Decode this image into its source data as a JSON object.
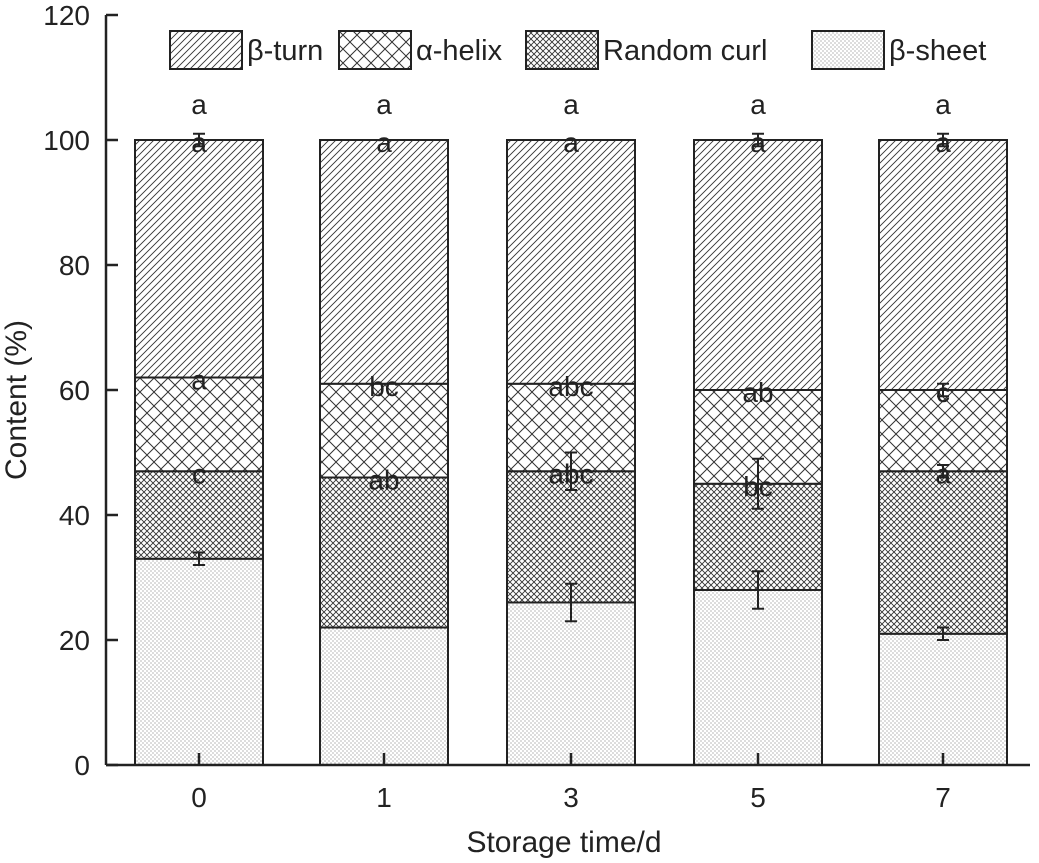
{
  "chart_data": {
    "type": "bar",
    "stacked": true,
    "xlabel": "Storage time/d",
    "ylabel": "Content (%)",
    "ylim": [
      0,
      120
    ],
    "yticks": [
      "0",
      "20",
      "40",
      "60",
      "80",
      "100",
      "120"
    ],
    "categories": [
      "0",
      "1",
      "3",
      "5",
      "7"
    ],
    "legend_position": "top",
    "grid": false,
    "series": [
      {
        "name": "β-sheet",
        "pattern": "dots",
        "values": [
          33,
          22,
          26,
          28,
          21
        ],
        "errors": [
          1,
          0,
          3,
          3,
          1
        ],
        "labels": [
          "",
          "",
          "",
          "",
          ""
        ]
      },
      {
        "name": "Random curl",
        "pattern": "crosshatch",
        "values": [
          14,
          24,
          21,
          17,
          26
        ],
        "errors": [
          0,
          0,
          3,
          4,
          1
        ],
        "labels": [
          "c",
          "ab",
          "abc",
          "bc",
          "a"
        ]
      },
      {
        "name": "α-helix",
        "pattern": "crosshatch-sparse",
        "values": [
          15,
          15,
          14,
          15,
          13
        ],
        "errors": [
          0,
          0,
          0,
          0,
          1
        ],
        "labels": [
          "a",
          "bc",
          "abc",
          "ab",
          "c"
        ]
      },
      {
        "name": "β-turn",
        "pattern": "diagonal",
        "values": [
          38,
          39,
          39,
          40,
          40
        ],
        "errors": [
          1,
          0,
          0,
          1,
          1
        ],
        "labels": [
          "a",
          "a",
          "a",
          "a",
          "a"
        ]
      }
    ],
    "top_labels": [
      "a",
      "a",
      "a",
      "a",
      "a"
    ],
    "legend_order": [
      "β-turn",
      "α-helix",
      "Random curl",
      "β-sheet"
    ]
  }
}
